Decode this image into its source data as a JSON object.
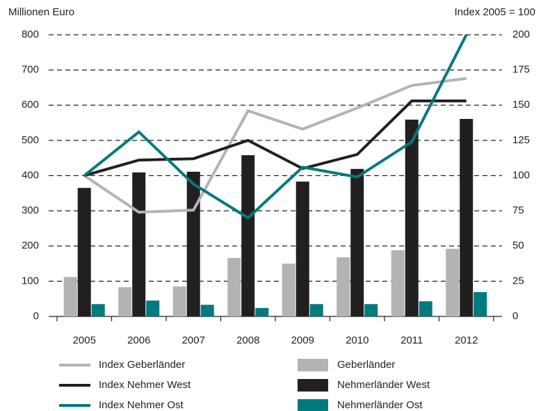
{
  "chart_data": {
    "type": "bar",
    "ylabel": "Millionen Euro",
    "y2label": "Index 2005 = 100",
    "categories": [
      "2005",
      "2006",
      "2007",
      "2008",
      "2009",
      "2010",
      "2011",
      "2012"
    ],
    "ylim": [
      0,
      800
    ],
    "yticks": [
      0,
      100,
      200,
      300,
      400,
      500,
      600,
      700,
      800
    ],
    "y2lim": [
      0,
      200
    ],
    "y2ticks": [
      0,
      25,
      50,
      75,
      100,
      125,
      150,
      175,
      200
    ],
    "grid": true,
    "series": [
      {
        "name": "Index Geberländer",
        "type": "line",
        "axis": "y2",
        "color": "#b3b3b5",
        "values": [
          100,
          74,
          75.5,
          146,
          133,
          148,
          164,
          169
        ]
      },
      {
        "name": "Index Nehmer West",
        "type": "line",
        "axis": "y2",
        "color": "#231f20",
        "values": [
          100,
          111,
          112,
          125,
          105,
          115,
          153,
          153
        ]
      },
      {
        "name": "Index Nehmer Ost",
        "type": "line",
        "axis": "y2",
        "color": "#007a7c",
        "values": [
          100,
          131,
          94,
          70,
          106,
          99,
          124,
          200
        ]
      },
      {
        "name": "Geberländer",
        "type": "bar",
        "color": "#b3b3b5",
        "values": [
          112,
          83,
          85,
          166,
          150,
          168,
          188,
          192
        ]
      },
      {
        "name": "Nehmerländer West",
        "type": "bar",
        "color": "#231f20",
        "values": [
          365,
          409,
          411,
          458,
          383,
          419,
          559,
          561
        ]
      },
      {
        "name": "Nehmerländer Ost",
        "type": "bar",
        "color": "#007a7c",
        "values": [
          35,
          45,
          33,
          24,
          35,
          35,
          43,
          69
        ]
      }
    ]
  }
}
